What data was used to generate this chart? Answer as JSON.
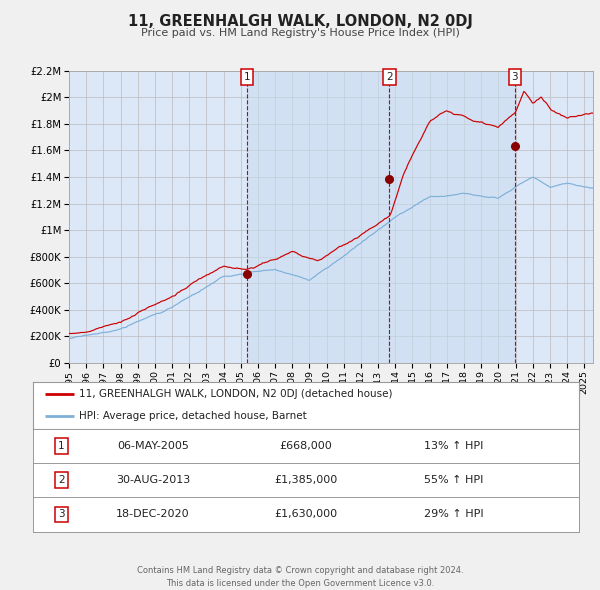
{
  "title": "11, GREENHALGH WALK, LONDON, N2 0DJ",
  "subtitle": "Price paid vs. HM Land Registry's House Price Index (HPI)",
  "ylim": [
    0,
    2200000
  ],
  "yticks": [
    0,
    200000,
    400000,
    600000,
    800000,
    1000000,
    1200000,
    1400000,
    1600000,
    1800000,
    2000000,
    2200000
  ],
  "ytick_labels": [
    "£0",
    "£200K",
    "£400K",
    "£600K",
    "£800K",
    "£1M",
    "£1.2M",
    "£1.4M",
    "£1.6M",
    "£1.8M",
    "£2M",
    "£2.2M"
  ],
  "xlim_start": 1995.0,
  "xlim_end": 2025.5,
  "xticks": [
    1995,
    1996,
    1997,
    1998,
    1999,
    2000,
    2001,
    2002,
    2003,
    2004,
    2005,
    2006,
    2007,
    2008,
    2009,
    2010,
    2011,
    2012,
    2013,
    2014,
    2015,
    2016,
    2017,
    2018,
    2019,
    2020,
    2021,
    2022,
    2023,
    2024,
    2025
  ],
  "fig_bg_color": "#f0f0f0",
  "plot_bg_color": "#dce8f8",
  "grid_color": "#bbbbbb",
  "line1_color": "#cc0000",
  "line2_color": "#7fb0d8",
  "sale_marker_color": "#880000",
  "vline_color": "#cc0000",
  "shade_color": "#c8ddf0",
  "legend_title1": "11, GREENHALGH WALK, LONDON, N2 0DJ (detached house)",
  "legend_title2": "HPI: Average price, detached house, Barnet",
  "sales": [
    {
      "num": 1,
      "date_val": 2005.37,
      "price": 668000,
      "label": "06-MAY-2005",
      "price_str": "£668,000",
      "pct": "13%",
      "dir": "↑"
    },
    {
      "num": 2,
      "date_val": 2013.66,
      "price": 1385000,
      "label": "30-AUG-2013",
      "price_str": "£1,385,000",
      "pct": "55%",
      "dir": "↑"
    },
    {
      "num": 3,
      "date_val": 2020.96,
      "price": 1630000,
      "label": "18-DEC-2020",
      "price_str": "£1,630,000",
      "pct": "29%",
      "dir": "↑"
    }
  ],
  "footer1": "Contains HM Land Registry data © Crown copyright and database right 2024.",
  "footer2": "This data is licensed under the Open Government Licence v3.0."
}
